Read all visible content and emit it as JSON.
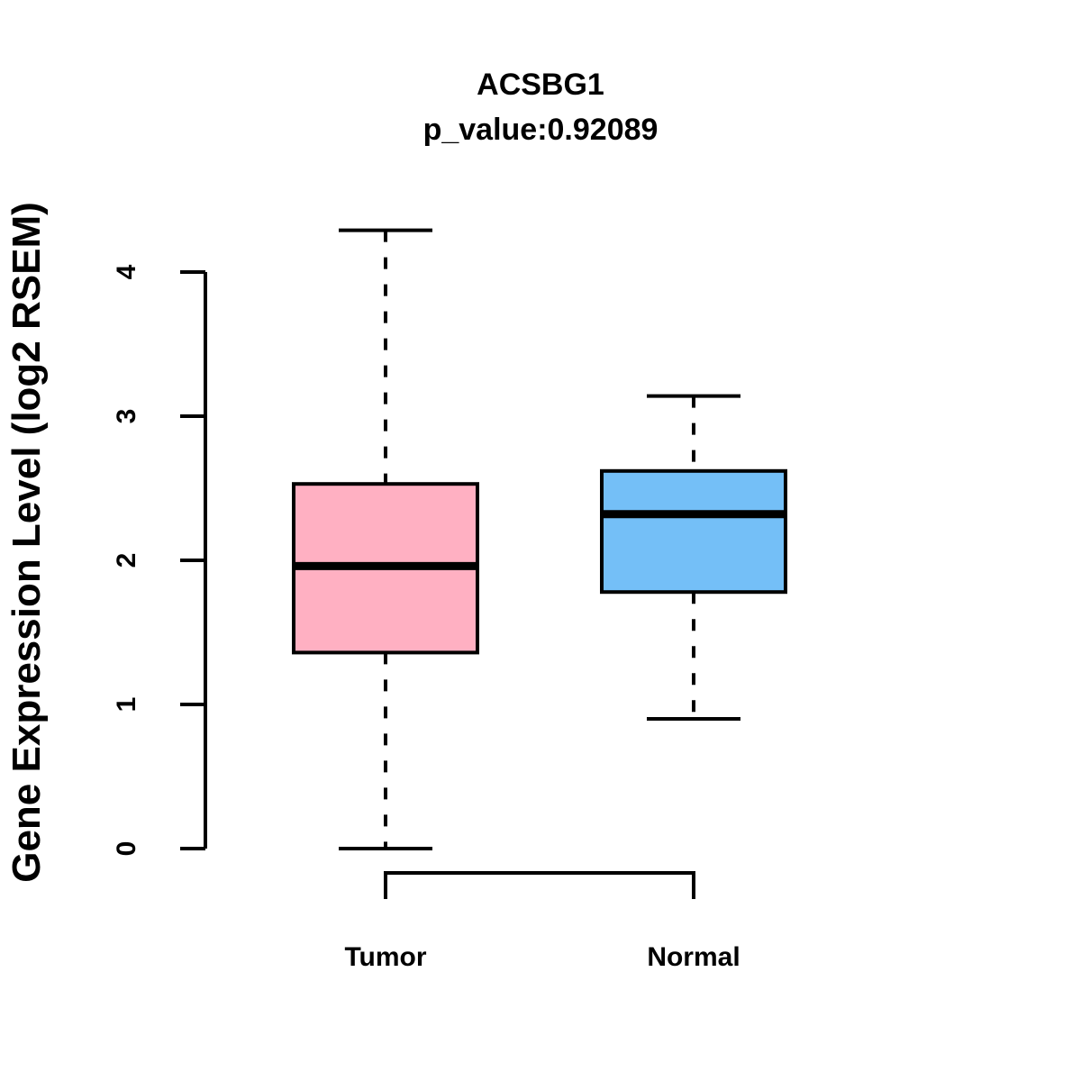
{
  "chart_data": {
    "type": "boxplot",
    "title": "ACSBG1",
    "subtitle": "p_value:0.92089",
    "xlabel": "",
    "ylabel": "Gene Expression Level (log2 RSEM)",
    "categories": [
      "Tumor",
      "Normal"
    ],
    "y_ticks": [
      0,
      1,
      2,
      3,
      4
    ],
    "ylim": [
      0,
      4.3
    ],
    "grid": false,
    "legend": "none",
    "colors": {
      "tumor_fill": "#FFB0C2",
      "normal_fill": "#74BFF7",
      "line": "#000000",
      "background": "#FFFFFF"
    },
    "series": [
      {
        "name": "Tumor",
        "color": "#FFB0C2",
        "lower_whisker": 0.0,
        "q1": 1.36,
        "median": 1.96,
        "q3": 2.53,
        "upper_whisker": 4.29
      },
      {
        "name": "Normal",
        "color": "#74BFF7",
        "lower_whisker": 0.9,
        "q1": 1.78,
        "median": 2.32,
        "q3": 2.62,
        "upper_whisker": 3.14
      }
    ]
  }
}
